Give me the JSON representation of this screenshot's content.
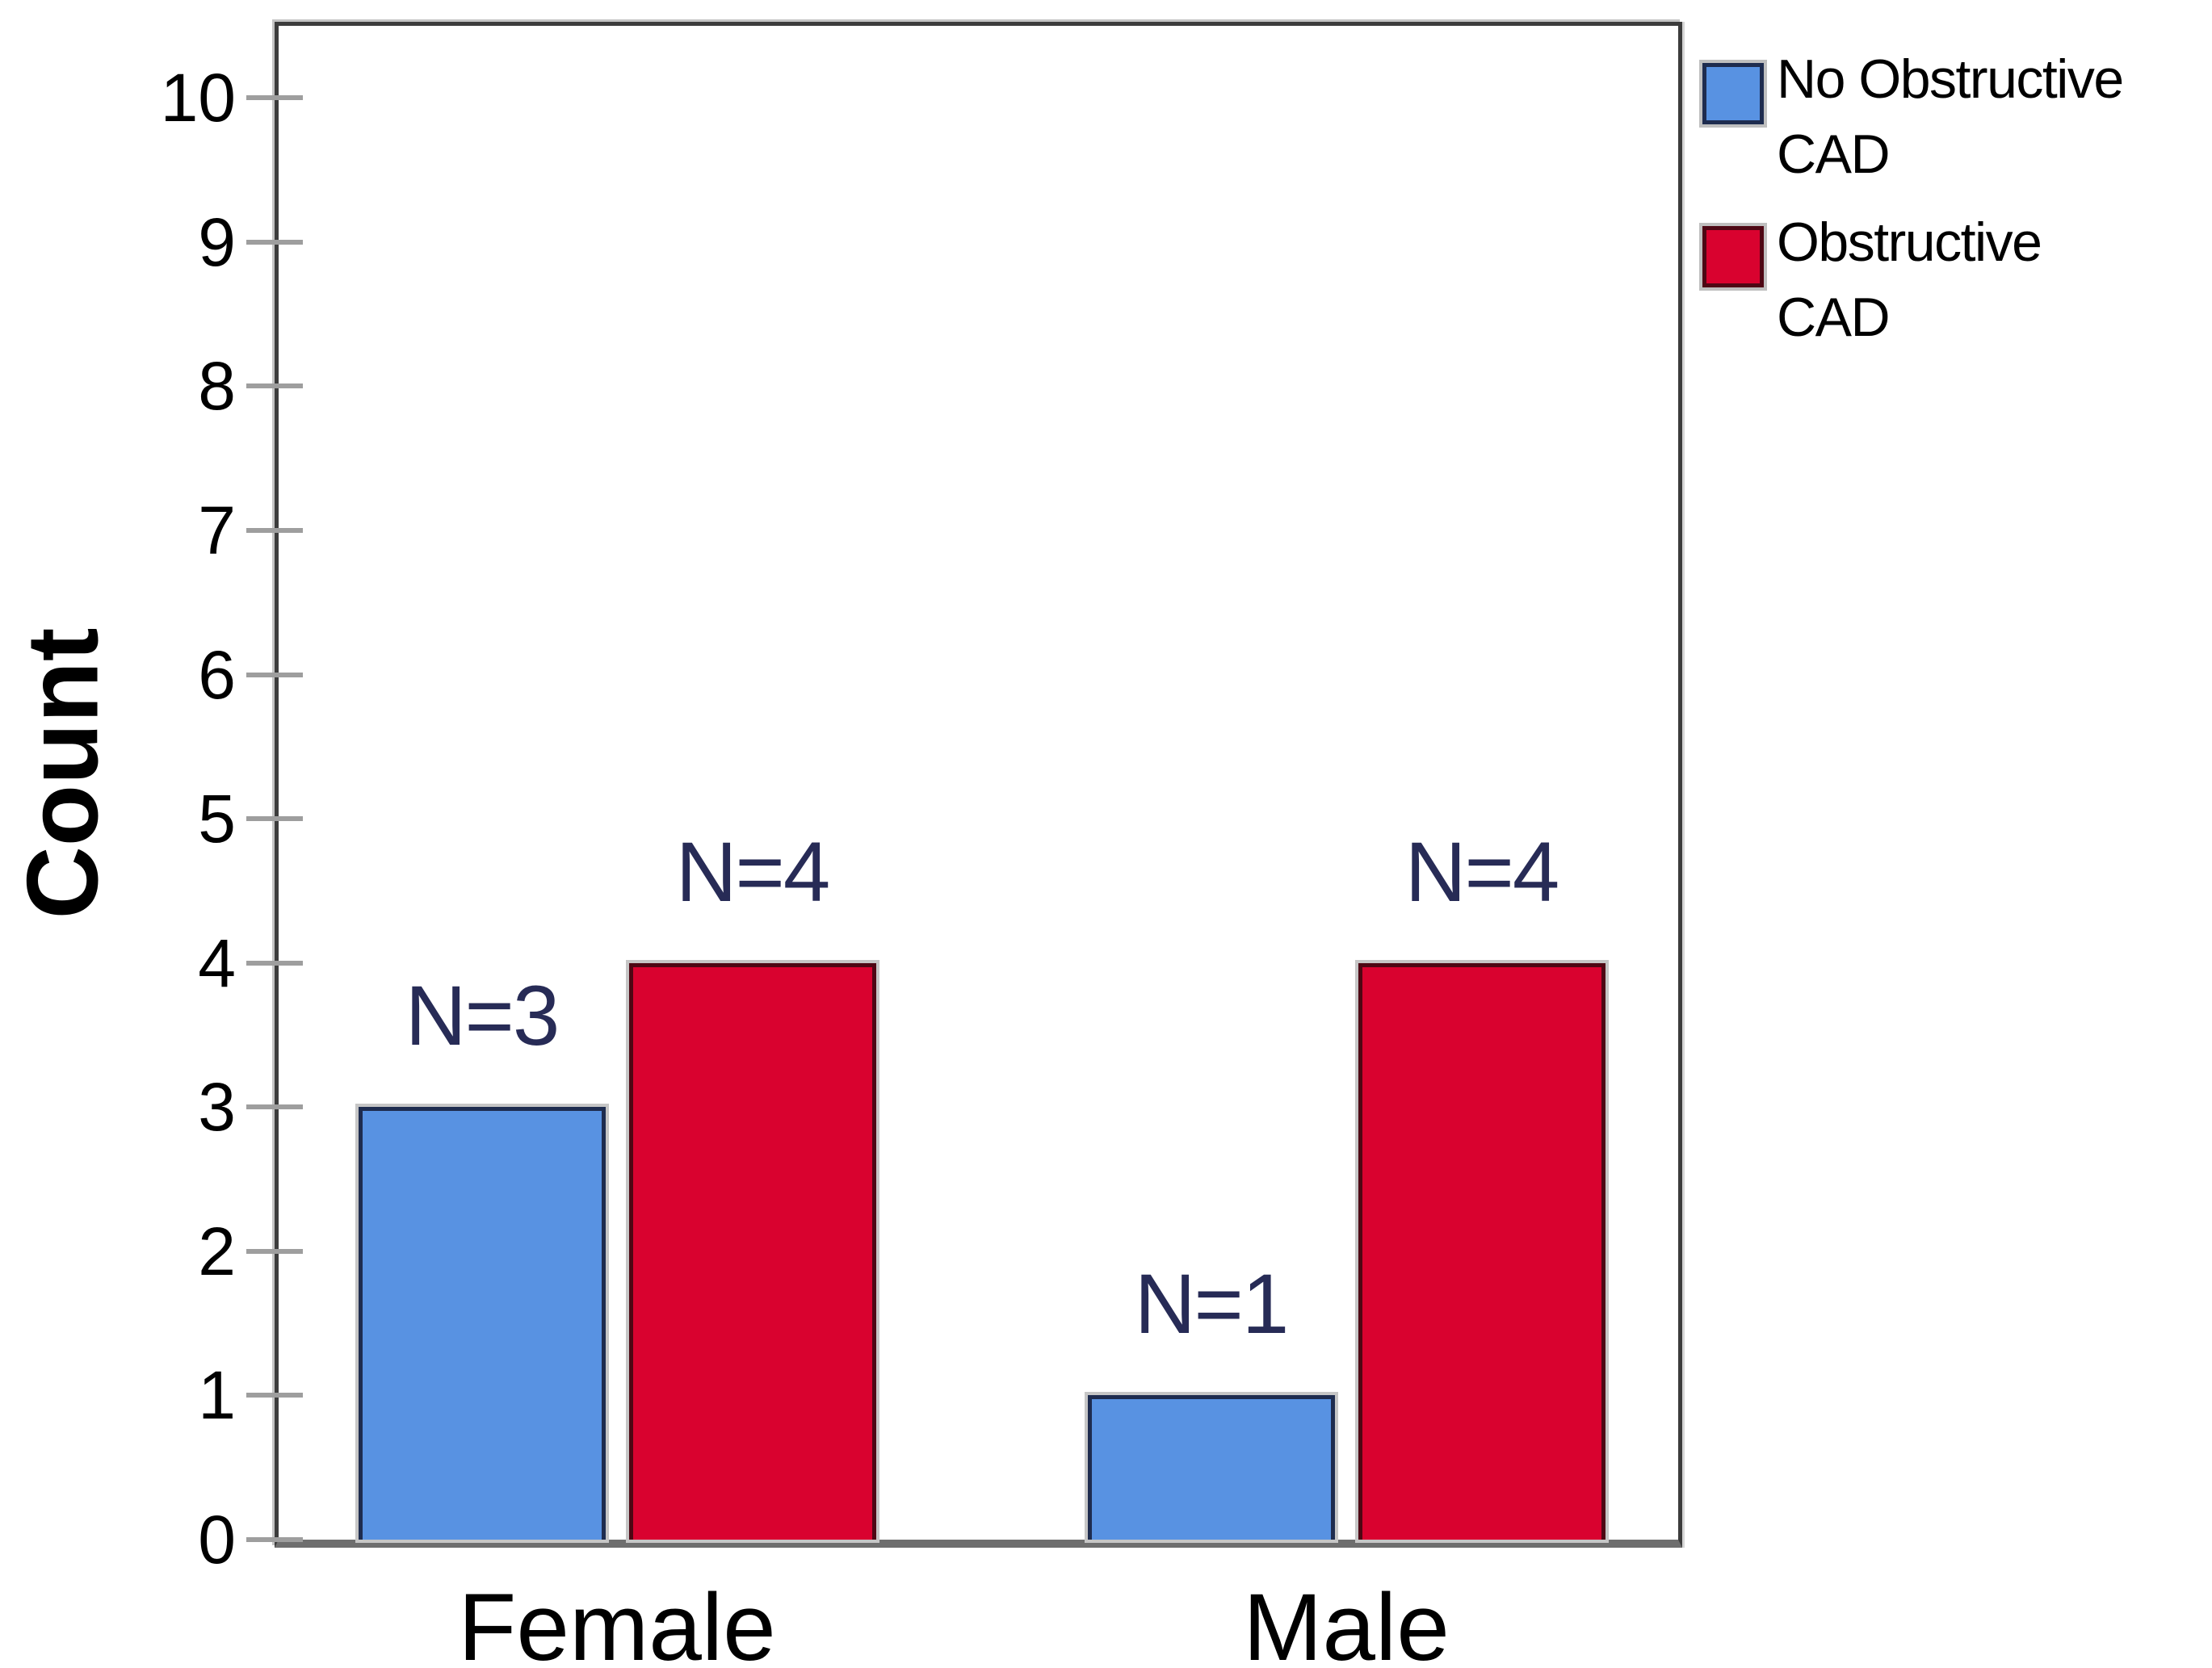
{
  "chart_data": {
    "type": "bar",
    "title": "",
    "categories": [
      "Female",
      "Male"
    ],
    "series": [
      {
        "name": "No Obstructive CAD",
        "legend_lines": [
          "No Obstructive",
          "CAD"
        ],
        "values": [
          3,
          1
        ],
        "bar_labels": [
          "N=3",
          "N=1"
        ],
        "color": "#5892e2",
        "border_color": "#1e2c4f"
      },
      {
        "name": "Obstructive CAD",
        "legend_lines": [
          "Obstructive",
          "CAD"
        ],
        "values": [
          4,
          4
        ],
        "bar_labels": [
          "N=4",
          "N=4"
        ],
        "color": "#d9022f",
        "border_color": "#4e0714"
      }
    ],
    "xlabel": "",
    "ylabel": "Count",
    "yticks": [
      0,
      1,
      2,
      3,
      4,
      5,
      6,
      7,
      8,
      9,
      10
    ],
    "ylim": [
      0,
      10.5
    ],
    "grid": false,
    "legend_position": "top-right",
    "annotation_color": "#272b56",
    "tick_color": "#9e9e9e",
    "frame_color": "#3c3c3c",
    "baseline_color": "#6e6e6e"
  }
}
